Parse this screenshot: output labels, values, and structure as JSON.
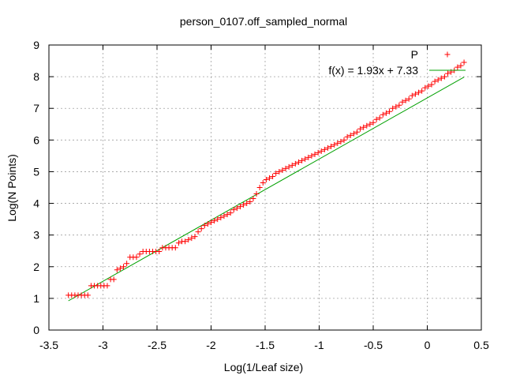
{
  "chart_data": {
    "type": "scatter",
    "title": "person_0107.off_sampled_normal",
    "xlabel": "Log(1/Leaf size)",
    "ylabel": "Log(N Points)",
    "xlim": [
      -3.5,
      0.5
    ],
    "ylim": [
      0,
      9
    ],
    "xticks": [
      -3.5,
      -3,
      -2.5,
      -2,
      -1.5,
      -1,
      -0.5,
      0,
      0.5
    ],
    "xtick_labels": [
      "-3.5",
      "-3",
      "-2.5",
      "-2",
      "-1.5",
      "-1",
      "-0.5",
      "0",
      "0.5"
    ],
    "yticks": [
      0,
      1,
      2,
      3,
      4,
      5,
      6,
      7,
      8,
      9
    ],
    "ytick_labels": [
      "0",
      "1",
      "2",
      "3",
      "4",
      "5",
      "6",
      "7",
      "8",
      "9"
    ],
    "grid": true,
    "legend_position": "top-right",
    "series": [
      {
        "name": "P",
        "type": "scatter",
        "marker": "+",
        "color": "#ff0000",
        "x": [
          -3.32,
          -3.29,
          -3.26,
          -3.23,
          -3.2,
          -3.17,
          -3.14,
          -3.11,
          -3.08,
          -3.05,
          -3.02,
          -2.99,
          -2.96,
          -2.93,
          -2.9,
          -2.87,
          -2.84,
          -2.81,
          -2.78,
          -2.75,
          -2.72,
          -2.69,
          -2.66,
          -2.63,
          -2.6,
          -2.57,
          -2.54,
          -2.51,
          -2.48,
          -2.45,
          -2.42,
          -2.39,
          -2.36,
          -2.33,
          -2.3,
          -2.27,
          -2.24,
          -2.21,
          -2.18,
          -2.15,
          -2.12,
          -2.09,
          -2.06,
          -2.03,
          -2,
          -1.97,
          -1.94,
          -1.91,
          -1.88,
          -1.85,
          -1.82,
          -1.79,
          -1.76,
          -1.73,
          -1.7,
          -1.67,
          -1.64,
          -1.61,
          -1.58,
          -1.55,
          -1.52,
          -1.49,
          -1.46,
          -1.43,
          -1.4,
          -1.37,
          -1.34,
          -1.31,
          -1.28,
          -1.25,
          -1.22,
          -1.19,
          -1.16,
          -1.13,
          -1.1,
          -1.07,
          -1.04,
          -1.01,
          -0.98,
          -0.95,
          -0.92,
          -0.89,
          -0.86,
          -0.83,
          -0.8,
          -0.77,
          -0.74,
          -0.71,
          -0.68,
          -0.65,
          -0.62,
          -0.59,
          -0.56,
          -0.53,
          -0.5,
          -0.47,
          -0.44,
          -0.41,
          -0.38,
          -0.35,
          -0.32,
          -0.29,
          -0.26,
          -0.23,
          -0.2,
          -0.17,
          -0.14,
          -0.11,
          -0.08,
          -0.05,
          -0.02,
          0.01,
          0.04,
          0.07,
          0.1,
          0.13,
          0.16,
          0.19,
          0.22,
          0.25,
          0.28,
          0.31,
          0.34
        ],
        "y": [
          1.1,
          1.1,
          1.1,
          1.1,
          1.1,
          1.1,
          1.1,
          1.4,
          1.4,
          1.4,
          1.4,
          1.4,
          1.4,
          1.6,
          1.6,
          1.9,
          1.95,
          2.0,
          2.1,
          2.3,
          2.3,
          2.3,
          2.4,
          2.48,
          2.48,
          2.48,
          2.48,
          2.48,
          2.48,
          2.6,
          2.6,
          2.6,
          2.6,
          2.6,
          2.75,
          2.8,
          2.8,
          2.85,
          2.9,
          2.95,
          3.1,
          3.2,
          3.3,
          3.35,
          3.4,
          3.45,
          3.5,
          3.55,
          3.6,
          3.65,
          3.7,
          3.8,
          3.85,
          3.9,
          3.95,
          4.0,
          4.05,
          4.15,
          4.3,
          4.5,
          4.65,
          4.75,
          4.8,
          4.85,
          4.95,
          5.0,
          5.05,
          5.1,
          5.15,
          5.2,
          5.25,
          5.3,
          5.35,
          5.4,
          5.45,
          5.5,
          5.55,
          5.6,
          5.65,
          5.7,
          5.75,
          5.8,
          5.85,
          5.9,
          5.95,
          6.0,
          6.1,
          6.15,
          6.2,
          6.25,
          6.35,
          6.4,
          6.45,
          6.5,
          6.55,
          6.65,
          6.7,
          6.8,
          6.85,
          6.9,
          7.0,
          7.05,
          7.1,
          7.2,
          7.25,
          7.3,
          7.4,
          7.45,
          7.5,
          7.55,
          7.65,
          7.7,
          7.75,
          7.85,
          7.9,
          7.95,
          8.0,
          8.1,
          8.15,
          8.2,
          8.3,
          8.35,
          8.45
        ]
      },
      {
        "name": "f(x) = 1.93x + 7.33",
        "type": "line",
        "color": "#00a000",
        "slope": 1.93,
        "intercept": 7.33,
        "x_range": [
          -3.32,
          0.34
        ]
      }
    ]
  }
}
